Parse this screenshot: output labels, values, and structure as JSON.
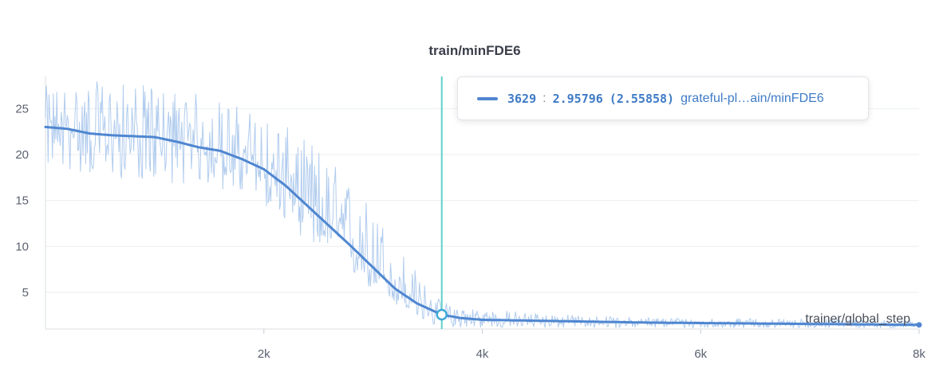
{
  "chart_data": {
    "type": "line",
    "title": "train/minFDE6",
    "xlabel": "trainer/global_step",
    "ylabel": "",
    "xlim": [
      0,
      8000
    ],
    "ylim": [
      1,
      28.5
    ],
    "x_ticks": [
      {
        "value": 2000,
        "label": "2k"
      },
      {
        "value": 4000,
        "label": "4k"
      },
      {
        "value": 6000,
        "label": "6k"
      },
      {
        "value": 8000,
        "label": "8k"
      }
    ],
    "y_ticks": [
      5,
      10,
      15,
      20,
      25
    ],
    "grid": true,
    "series": [
      {
        "name": "grateful-pl…ain/minFDE6",
        "color": "#4f86d0",
        "smoothed": {
          "x": [
            0,
            200,
            400,
            600,
            800,
            1000,
            1200,
            1400,
            1600,
            1800,
            2000,
            2200,
            2400,
            2600,
            2800,
            3000,
            3200,
            3400,
            3629,
            3800,
            4000,
            4500,
            5000,
            5500,
            6000,
            6500,
            7000,
            7500,
            8000
          ],
          "y": [
            23.0,
            22.8,
            22.3,
            22.1,
            22.0,
            21.9,
            21.4,
            20.8,
            20.4,
            19.5,
            18.4,
            16.6,
            14.4,
            12.2,
            10.0,
            7.7,
            5.4,
            3.8,
            2.55858,
            2.2,
            2.0,
            1.9,
            1.8,
            1.7,
            1.65,
            1.6,
            1.55,
            1.5,
            1.45
          ]
        },
        "raw_envelope": {
          "x": [
            0,
            500,
            1000,
            1500,
            2000,
            2500,
            3000,
            3500,
            3629,
            4000,
            5000,
            6000,
            7000,
            8000
          ],
          "low": [
            18.5,
            17.5,
            17.0,
            16.5,
            14.5,
            9.5,
            5.0,
            1.3,
            1.2,
            1.1,
            1.1,
            1.1,
            1.1,
            1.1
          ],
          "high": [
            27.5,
            28.0,
            27.5,
            26.5,
            24.5,
            21.0,
            14.5,
            5.5,
            4.0,
            3.2,
            2.4,
            2.2,
            2.1,
            2.0
          ]
        }
      }
    ],
    "hover": {
      "step": 3629,
      "value": 2.95796,
      "smoothed_value": 2.55858
    }
  },
  "tooltip": {
    "step_label": "3629",
    "separator": ":",
    "value_label": "2.95796",
    "smoothed_label": "(2.55858)",
    "run_label": "grateful-pl…ain/minFDE6"
  },
  "colors": {
    "line": "#4f86d0",
    "raw": "#a9c6ec",
    "hover_line": "#5fd0c9",
    "grid": "#eceef2"
  }
}
